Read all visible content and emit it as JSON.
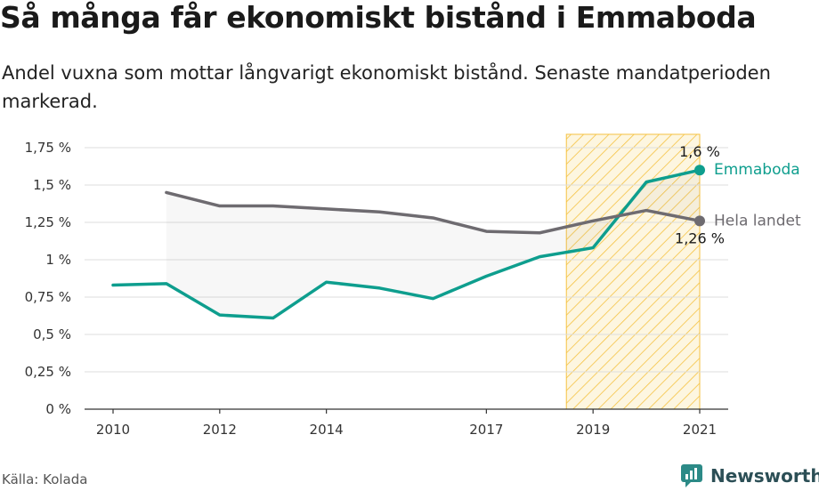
{
  "title": "Så många får ekonomiskt bistånd i Emmaboda",
  "subtitle": "Andel vuxna som mottar långvarigt ekonomiskt bistånd. Senaste mandatperioden markerad.",
  "source": "Källa: Kolada",
  "brand": {
    "name": "Newsworthy",
    "icon": "newsworthy-logo-icon"
  },
  "colors": {
    "emmaboda": "#0e9e8e",
    "hela_landet": "#6e6b70",
    "highlight": "#f5c242",
    "grid": "#dddddd"
  },
  "chart_data": {
    "type": "line",
    "title": "Så många får ekonomiskt bistånd i Emmaboda",
    "xlabel": "",
    "ylabel": "",
    "xlim": [
      2009.8,
      2022.5
    ],
    "ylim": [
      0,
      1.75
    ],
    "x_ticks": [
      2010,
      2012,
      2014,
      2017,
      2019,
      2021
    ],
    "y_ticks": [
      0,
      0.25,
      0.5,
      0.75,
      1,
      1.25,
      1.5,
      1.75
    ],
    "y_tick_labels": [
      "0 %",
      "0,25 %",
      "0,5 %",
      "0,75 %",
      "1 %",
      "1,25 %",
      "1,5 %",
      "1,75 %"
    ],
    "highlight_period": [
      2018.5,
      2021
    ],
    "grid": true,
    "series": [
      {
        "name": "Emmaboda",
        "color": "#0e9e8e",
        "x": [
          2010,
          2011,
          2012,
          2013,
          2014,
          2015,
          2016,
          2017,
          2018,
          2019,
          2020,
          2021
        ],
        "values": [
          0.83,
          0.84,
          0.63,
          0.61,
          0.85,
          0.81,
          0.74,
          0.89,
          1.02,
          1.08,
          1.52,
          1.6
        ],
        "end_label": "1,6 %"
      },
      {
        "name": "Hela landet",
        "color": "#6e6b70",
        "x": [
          2011,
          2012,
          2013,
          2014,
          2015,
          2016,
          2017,
          2018,
          2019,
          2020,
          2021
        ],
        "values": [
          1.45,
          1.36,
          1.36,
          1.34,
          1.32,
          1.28,
          1.19,
          1.18,
          1.26,
          1.33,
          1.26
        ],
        "end_label": "1,26 %"
      }
    ]
  }
}
